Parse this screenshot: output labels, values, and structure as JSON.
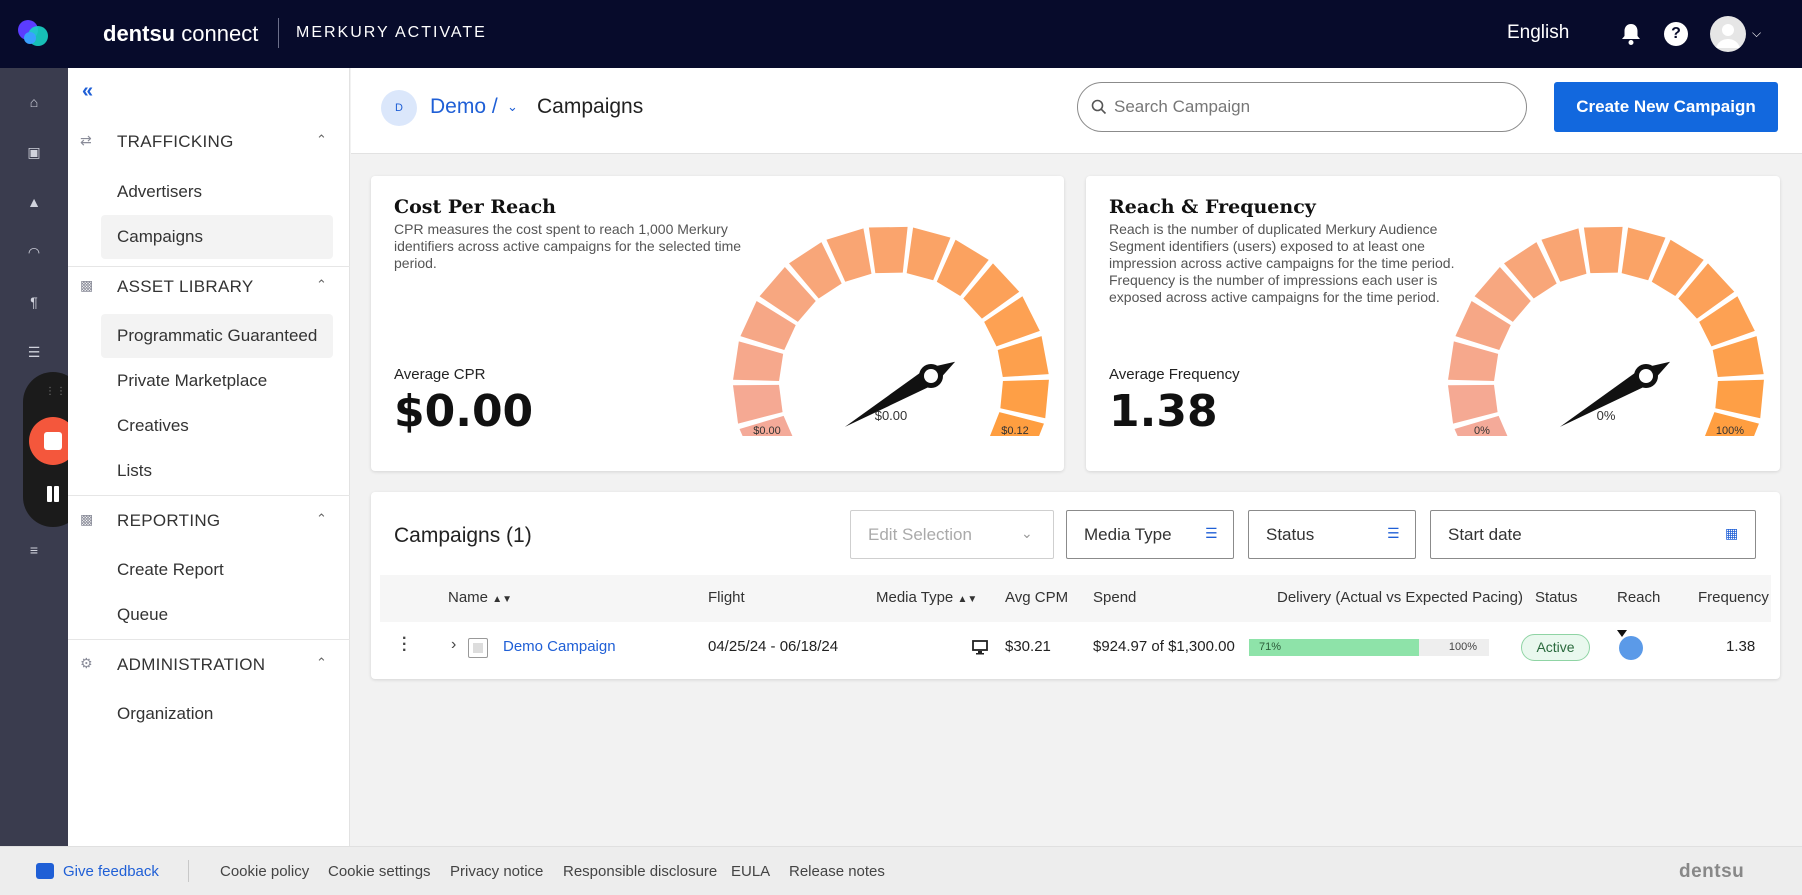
{
  "topbar": {
    "brand_bold": "dentsu",
    "brand_light": "connect",
    "product": "MERKURY ACTIVATE",
    "language": "English"
  },
  "sidenav": {
    "sections": [
      {
        "label": "TRAFFICKING",
        "items": [
          "Advertisers",
          "Campaigns"
        ]
      },
      {
        "label": "ASSET LIBRARY",
        "items": [
          "Programmatic Guaranteed",
          "Private Marketplace",
          "Creatives",
          "Lists"
        ]
      },
      {
        "label": "REPORTING",
        "items": [
          "Create Report",
          "Queue"
        ]
      },
      {
        "label": "ADMINISTRATION",
        "items": [
          "Organization"
        ]
      }
    ]
  },
  "header": {
    "org_initial": "D",
    "org_name": "Demo /",
    "page_title": "Campaigns",
    "search_placeholder": "Search Campaign",
    "create_button": "Create New Campaign"
  },
  "cards": {
    "cpr": {
      "title": "Cost Per Reach",
      "description": "CPR measures the cost spent to reach 1,000 Merkury identifiers across active campaigns for the selected time period.",
      "metric_label": "Average CPR",
      "metric_value": "$0.00",
      "gauge_value": "$0.00",
      "gauge_min": "$0.00",
      "gauge_max": "$0.12",
      "gauge_fraction": 0
    },
    "reach": {
      "title": "Reach & Frequency",
      "description": "Reach is the number of duplicated Merkury Audience Segment identifiers (users) exposed to at least one impression across active campaigns for the time period. Frequency is the number of impressions each user is exposed across active campaigns for the time period.",
      "metric_label": "Average Frequency",
      "metric_value": "1.38",
      "gauge_value": "0%",
      "gauge_min": "0%",
      "gauge_max": "100%",
      "gauge_fraction": 0
    }
  },
  "table": {
    "title": "Campaigns (1)",
    "filters": {
      "edit_selection": "Edit Selection",
      "media_type": "Media Type",
      "status": "Status",
      "start_date": "Start date"
    },
    "columns": {
      "name": "Name",
      "flight": "Flight",
      "media_type": "Media Type",
      "avg_cpm": "Avg CPM",
      "spend": "Spend",
      "delivery": "Delivery (Actual vs Expected Pacing)",
      "status": "Status",
      "reach": "Reach",
      "frequency": "Frequency"
    },
    "rows": [
      {
        "name": "Demo Campaign",
        "flight": "04/25/24 - 06/18/24",
        "avg_cpm": "$30.21",
        "spend": "$924.97 of $1,300.00",
        "delivery_actual": "71%",
        "delivery_actual_fraction": 0.71,
        "delivery_expected": "100%",
        "status": "Active",
        "frequency": "1.38"
      }
    ]
  },
  "footer": {
    "feedback": "Give feedback",
    "links": [
      "Cookie policy",
      "Cookie settings",
      "Privacy notice",
      "Responsible disclosure",
      "EULA",
      "Release notes"
    ],
    "brand": "dentsu"
  },
  "colors": {
    "topbar": "#070b2b",
    "accent": "#1268de",
    "gauge_low": "#f4aa99",
    "gauge_high": "#ff9e40",
    "delivery_fill": "#8ee3a9"
  }
}
